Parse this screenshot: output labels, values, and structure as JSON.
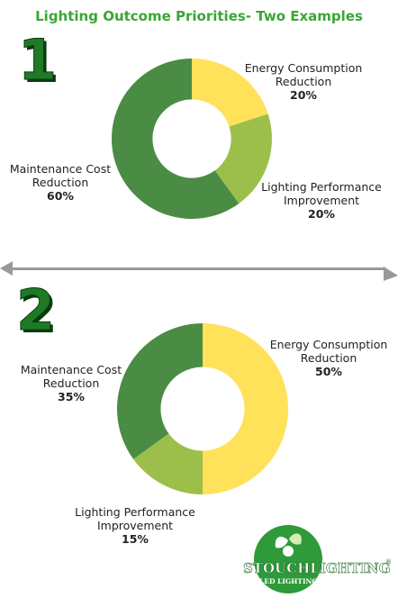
{
  "title": "Lighting Outcome Priorities- Two Examples",
  "colors": {
    "title": "#3aa635",
    "energy": "#ffe15a",
    "lighting": "#9cbf4b",
    "maintenance": "#4a8c44",
    "number": "#1f7a25",
    "logo_green": "#2e9a3a"
  },
  "examples": [
    {
      "number": "1",
      "labels": {
        "energy": {
          "line1": "Energy Consumption",
          "line2": "Reduction",
          "pct": "20%"
        },
        "lighting": {
          "line1": "Lighting Performance",
          "line2": "Improvement",
          "pct": "20%"
        },
        "maintenance": {
          "line1": "Maintenance Cost",
          "line2": "Reduction",
          "pct": "60%"
        }
      }
    },
    {
      "number": "2",
      "labels": {
        "energy": {
          "line1": "Energy Consumption",
          "line2": "Reduction",
          "pct": "50%"
        },
        "lighting": {
          "line1": "Lighting Performance",
          "line2": "Improvement",
          "pct": "15%"
        },
        "maintenance": {
          "line1": "Maintenance Cost",
          "line2": "Reduction",
          "pct": "35%"
        }
      }
    }
  ],
  "logo": {
    "brand_line1": "STOUCHLIGHTING",
    "registered": "®",
    "brand_line2": "LED LIGHTING SOLUTIONS"
  },
  "chart_data": [
    {
      "type": "pie",
      "categories": [
        "Energy Consumption Reduction",
        "Lighting Performance Improvement",
        "Maintenance Cost Reduction"
      ],
      "values": [
        20,
        20,
        60
      ],
      "colors": [
        "#ffe15a",
        "#9cbf4b",
        "#4a8c44"
      ]
    },
    {
      "type": "pie",
      "categories": [
        "Energy Consumption Reduction",
        "Lighting Performance Improvement",
        "Maintenance Cost Reduction"
      ],
      "values": [
        50,
        15,
        35
      ],
      "colors": [
        "#ffe15a",
        "#9cbf4b",
        "#4a8c44"
      ]
    }
  ]
}
